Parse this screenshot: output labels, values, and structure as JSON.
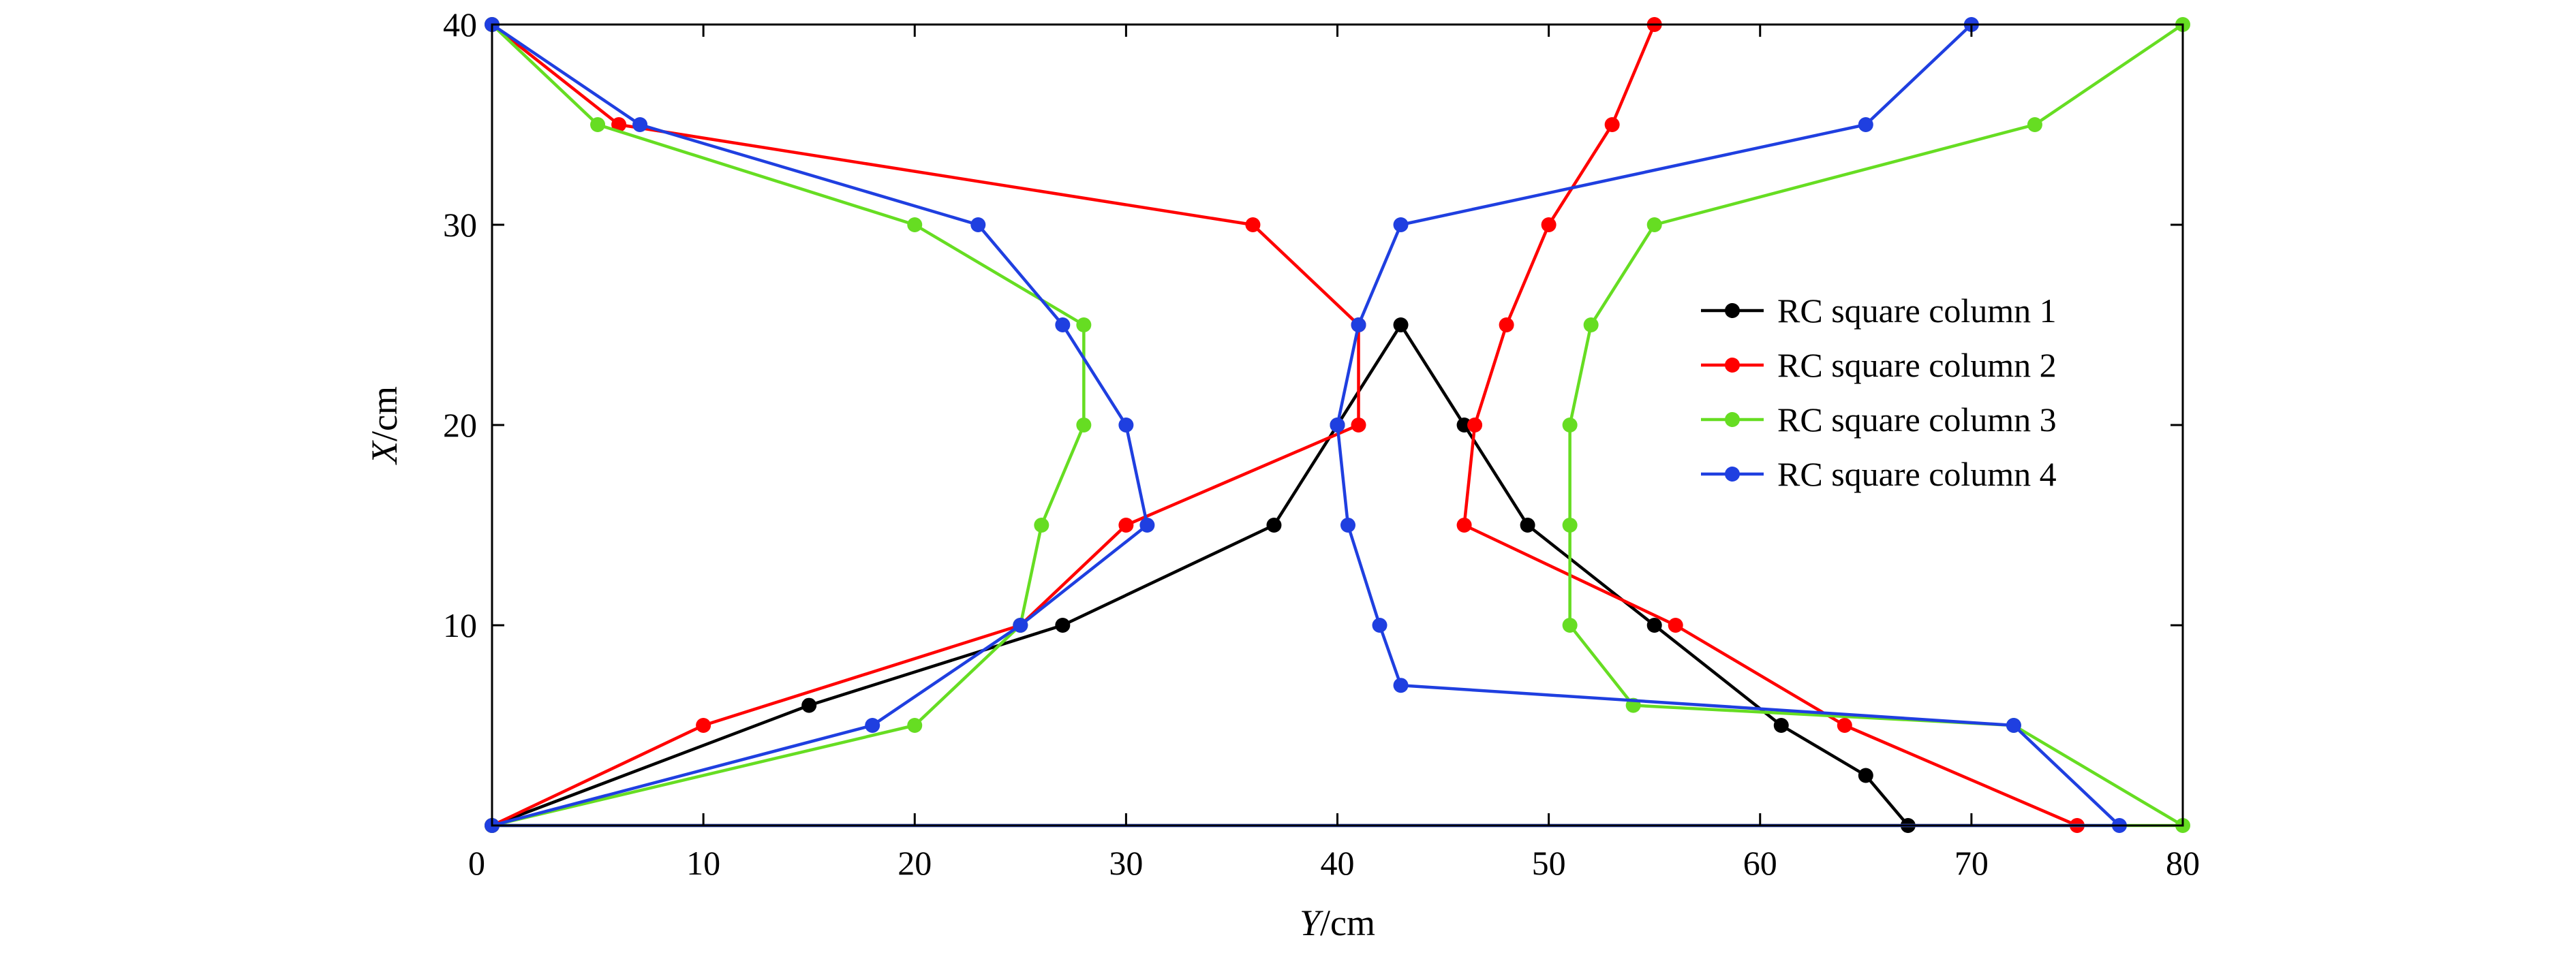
{
  "chart_data": {
    "type": "line",
    "title": "",
    "xlabel_var": "Y",
    "xlabel_unit": "/cm",
    "ylabel_var": "X",
    "ylabel_unit": "/cm",
    "xlim": [
      0,
      80
    ],
    "ylim": [
      0,
      40
    ],
    "xticks": [
      0,
      10,
      20,
      30,
      40,
      50,
      60,
      70,
      80
    ],
    "yticks": [
      10,
      20,
      30,
      40
    ],
    "legend_position": "right",
    "grid": false,
    "series": [
      {
        "name": "RC square column 1",
        "color": "#000000",
        "points": [
          [
            0,
            0
          ],
          [
            15,
            6
          ],
          [
            27,
            10
          ],
          [
            37,
            15
          ],
          [
            40,
            20
          ],
          [
            43,
            25
          ],
          [
            46,
            20
          ],
          [
            49,
            15
          ],
          [
            55,
            10
          ],
          [
            61,
            5
          ],
          [
            65,
            2.5
          ],
          [
            67,
            0
          ]
        ]
      },
      {
        "name": "RC square column 2",
        "color": "#ff0000",
        "points": [
          [
            0,
            40
          ],
          [
            6,
            35
          ],
          [
            36,
            30
          ],
          [
            41,
            25
          ],
          [
            41,
            20
          ],
          [
            30,
            15
          ],
          [
            25,
            10
          ],
          [
            10,
            5
          ],
          [
            0,
            0
          ],
          [
            75,
            0
          ],
          [
            64,
            5
          ],
          [
            56,
            10
          ],
          [
            46,
            15
          ],
          [
            46.5,
            20
          ],
          [
            48,
            25
          ],
          [
            50,
            30
          ],
          [
            53,
            35
          ],
          [
            55,
            40
          ]
        ]
      },
      {
        "name": "RC square column 3",
        "color": "#66dd22",
        "points": [
          [
            0,
            40
          ],
          [
            5,
            35
          ],
          [
            20,
            30
          ],
          [
            28,
            25
          ],
          [
            28,
            20
          ],
          [
            26,
            15
          ],
          [
            25,
            10
          ],
          [
            20,
            5
          ],
          [
            0,
            0
          ],
          [
            80,
            0
          ],
          [
            72,
            5
          ],
          [
            54,
            6
          ],
          [
            51,
            10
          ],
          [
            51,
            15
          ],
          [
            51,
            20
          ],
          [
            52,
            25
          ],
          [
            55,
            30
          ],
          [
            73,
            35
          ],
          [
            80,
            40
          ]
        ]
      },
      {
        "name": "RC square column 4",
        "color": "#1f3fe0",
        "points": [
          [
            0,
            40
          ],
          [
            7,
            35
          ],
          [
            23,
            30
          ],
          [
            27,
            25
          ],
          [
            30,
            20
          ],
          [
            31,
            15
          ],
          [
            25,
            10
          ],
          [
            18,
            5
          ],
          [
            0,
            0
          ],
          [
            77,
            0
          ],
          [
            72,
            5
          ],
          [
            43,
            7
          ],
          [
            42,
            10
          ],
          [
            40.5,
            15
          ],
          [
            40,
            20
          ],
          [
            41,
            25
          ],
          [
            43,
            30
          ],
          [
            65,
            35
          ],
          [
            70,
            40
          ]
        ]
      }
    ]
  }
}
